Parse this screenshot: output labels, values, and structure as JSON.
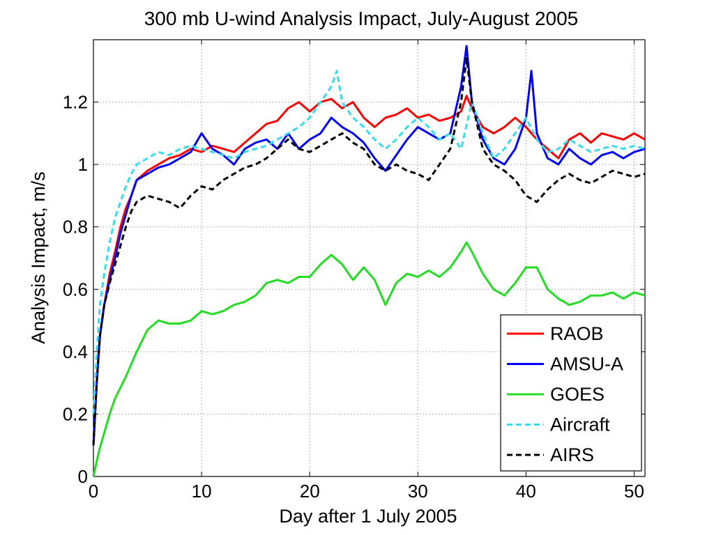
{
  "chart_data": {
    "type": "line",
    "title": "300 mb U-wind Analysis Impact, July-August 2005",
    "xlabel": "Day after 1 July 2005",
    "ylabel": "Analysis Impact, m/s",
    "xlim": [
      0,
      51
    ],
    "ylim": [
      0,
      1.4
    ],
    "xticks": [
      0,
      10,
      20,
      30,
      40,
      50
    ],
    "yticks": [
      0,
      0.2,
      0.4,
      0.6,
      0.8,
      1,
      1.2
    ],
    "xtick_labels": [
      "0",
      "10",
      "20",
      "30",
      "40",
      "50"
    ],
    "ytick_labels": [
      "0",
      "0.2",
      "0.4",
      "0.6",
      "0.8",
      "1",
      "1.2"
    ],
    "grid": true,
    "legend_position": "bottom-right",
    "series": [
      {
        "name": "RAOB",
        "color": "#ff0000",
        "dash": "solid",
        "x": [
          0,
          0.3,
          0.6,
          1,
          1.5,
          2,
          2.5,
          3,
          3.5,
          4,
          5,
          6,
          7,
          8,
          9,
          10,
          11,
          12,
          13,
          14,
          15,
          16,
          17,
          18,
          19,
          20,
          21,
          22,
          23,
          24,
          25,
          26,
          27,
          28,
          29,
          30,
          31,
          32,
          33,
          34,
          34.5,
          35,
          36,
          37,
          38,
          39,
          40,
          41,
          42,
          43,
          44,
          45,
          46,
          47,
          48,
          49,
          50,
          51
        ],
        "y": [
          0.1,
          0.3,
          0.45,
          0.55,
          0.65,
          0.72,
          0.8,
          0.86,
          0.9,
          0.95,
          0.98,
          1.0,
          1.02,
          1.03,
          1.05,
          1.04,
          1.06,
          1.05,
          1.04,
          1.07,
          1.1,
          1.13,
          1.14,
          1.18,
          1.2,
          1.17,
          1.2,
          1.21,
          1.18,
          1.2,
          1.15,
          1.12,
          1.15,
          1.16,
          1.18,
          1.15,
          1.16,
          1.14,
          1.15,
          1.17,
          1.22,
          1.18,
          1.12,
          1.1,
          1.12,
          1.15,
          1.12,
          1.08,
          1.05,
          1.02,
          1.08,
          1.1,
          1.07,
          1.1,
          1.09,
          1.08,
          1.1,
          1.08
        ]
      },
      {
        "name": "AMSU-A",
        "color": "#0000ff",
        "dash": "solid",
        "x": [
          0,
          0.3,
          0.6,
          1,
          1.5,
          2,
          2.5,
          3,
          3.5,
          4,
          5,
          6,
          7,
          8,
          9,
          10,
          11,
          12,
          13,
          14,
          15,
          16,
          17,
          18,
          19,
          20,
          21,
          22,
          23,
          24,
          25,
          26,
          27,
          28,
          29,
          30,
          31,
          32,
          33,
          34,
          34.5,
          35,
          36,
          37,
          38,
          39,
          40,
          40.5,
          41,
          42,
          43,
          44,
          45,
          46,
          47,
          48,
          49,
          50,
          51
        ],
        "y": [
          0.1,
          0.3,
          0.45,
          0.55,
          0.63,
          0.7,
          0.78,
          0.84,
          0.9,
          0.95,
          0.97,
          0.99,
          1.0,
          1.02,
          1.04,
          1.1,
          1.05,
          1.03,
          1.0,
          1.05,
          1.07,
          1.08,
          1.05,
          1.1,
          1.05,
          1.08,
          1.1,
          1.15,
          1.12,
          1.1,
          1.07,
          1.02,
          0.98,
          1.03,
          1.08,
          1.12,
          1.1,
          1.08,
          1.1,
          1.25,
          1.38,
          1.2,
          1.08,
          1.02,
          1.0,
          1.05,
          1.15,
          1.3,
          1.1,
          1.02,
          1.0,
          1.05,
          1.02,
          1.0,
          1.03,
          1.04,
          1.02,
          1.04,
          1.05
        ]
      },
      {
        "name": "GOES",
        "color": "#22dd22",
        "dash": "solid",
        "x": [
          0,
          0.5,
          1,
          1.5,
          2,
          3,
          4,
          5,
          6,
          7,
          8,
          9,
          10,
          11,
          12,
          13,
          14,
          15,
          16,
          17,
          18,
          19,
          20,
          21,
          22,
          23,
          24,
          25,
          26,
          27,
          28,
          29,
          30,
          31,
          32,
          33,
          34,
          34.5,
          35,
          36,
          37,
          38,
          39,
          40,
          41,
          42,
          43,
          44,
          45,
          46,
          47,
          48,
          49,
          50,
          51
        ],
        "y": [
          0,
          0.08,
          0.14,
          0.2,
          0.25,
          0.32,
          0.4,
          0.47,
          0.5,
          0.49,
          0.49,
          0.5,
          0.53,
          0.52,
          0.53,
          0.55,
          0.56,
          0.58,
          0.62,
          0.63,
          0.62,
          0.64,
          0.64,
          0.68,
          0.71,
          0.68,
          0.63,
          0.67,
          0.63,
          0.55,
          0.62,
          0.65,
          0.64,
          0.66,
          0.64,
          0.67,
          0.72,
          0.75,
          0.72,
          0.65,
          0.6,
          0.58,
          0.62,
          0.67,
          0.67,
          0.6,
          0.57,
          0.55,
          0.56,
          0.58,
          0.58,
          0.59,
          0.57,
          0.59,
          0.58
        ]
      },
      {
        "name": "Aircraft",
        "color": "#33ddee",
        "dash": "dashed",
        "x": [
          0,
          0.3,
          0.6,
          1,
          1.5,
          2,
          2.5,
          3,
          3.5,
          4,
          5,
          6,
          7,
          8,
          9,
          10,
          11,
          12,
          13,
          14,
          15,
          16,
          17,
          18,
          19,
          20,
          21,
          22,
          22.5,
          23,
          24,
          25,
          26,
          27,
          28,
          29,
          30,
          31,
          32,
          33,
          34,
          35,
          36,
          37,
          38,
          39,
          40,
          41,
          42,
          43,
          44,
          45,
          46,
          47,
          48,
          49,
          50,
          51
        ],
        "y": [
          0.2,
          0.4,
          0.55,
          0.65,
          0.75,
          0.83,
          0.88,
          0.93,
          0.97,
          1.0,
          1.02,
          1.04,
          1.03,
          1.05,
          1.06,
          1.05,
          1.04,
          1.03,
          1.02,
          1.04,
          1.05,
          1.06,
          1.08,
          1.1,
          1.12,
          1.15,
          1.2,
          1.25,
          1.3,
          1.2,
          1.15,
          1.12,
          1.08,
          1.05,
          1.08,
          1.12,
          1.15,
          1.12,
          1.08,
          1.1,
          1.05,
          1.2,
          1.1,
          1.02,
          1.05,
          1.1,
          1.15,
          1.08,
          1.04,
          1.05,
          1.08,
          1.06,
          1.04,
          1.05,
          1.06,
          1.05,
          1.06,
          1.05
        ]
      },
      {
        "name": "AIRS",
        "color": "#000000",
        "dash": "dashed",
        "x": [
          0,
          0.3,
          0.6,
          1,
          1.5,
          2,
          2.5,
          3,
          3.5,
          4,
          5,
          6,
          7,
          8,
          9,
          10,
          11,
          12,
          13,
          14,
          15,
          16,
          17,
          18,
          19,
          20,
          21,
          22,
          23,
          24,
          25,
          26,
          27,
          28,
          29,
          30,
          31,
          32,
          33,
          34,
          34.5,
          35,
          36,
          37,
          38,
          39,
          40,
          41,
          42,
          43,
          44,
          45,
          46,
          47,
          48,
          49,
          50,
          51
        ],
        "y": [
          0.1,
          0.3,
          0.45,
          0.55,
          0.62,
          0.68,
          0.74,
          0.8,
          0.85,
          0.88,
          0.9,
          0.89,
          0.88,
          0.86,
          0.9,
          0.93,
          0.92,
          0.95,
          0.97,
          0.99,
          1.0,
          1.02,
          1.05,
          1.08,
          1.05,
          1.04,
          1.06,
          1.08,
          1.1,
          1.07,
          1.05,
          1.0,
          0.98,
          1.0,
          0.98,
          0.97,
          0.95,
          1.0,
          1.05,
          1.2,
          1.34,
          1.2,
          1.05,
          1.0,
          0.98,
          0.95,
          0.9,
          0.88,
          0.92,
          0.95,
          0.97,
          0.95,
          0.94,
          0.96,
          0.98,
          0.97,
          0.96,
          0.97
        ]
      }
    ]
  }
}
